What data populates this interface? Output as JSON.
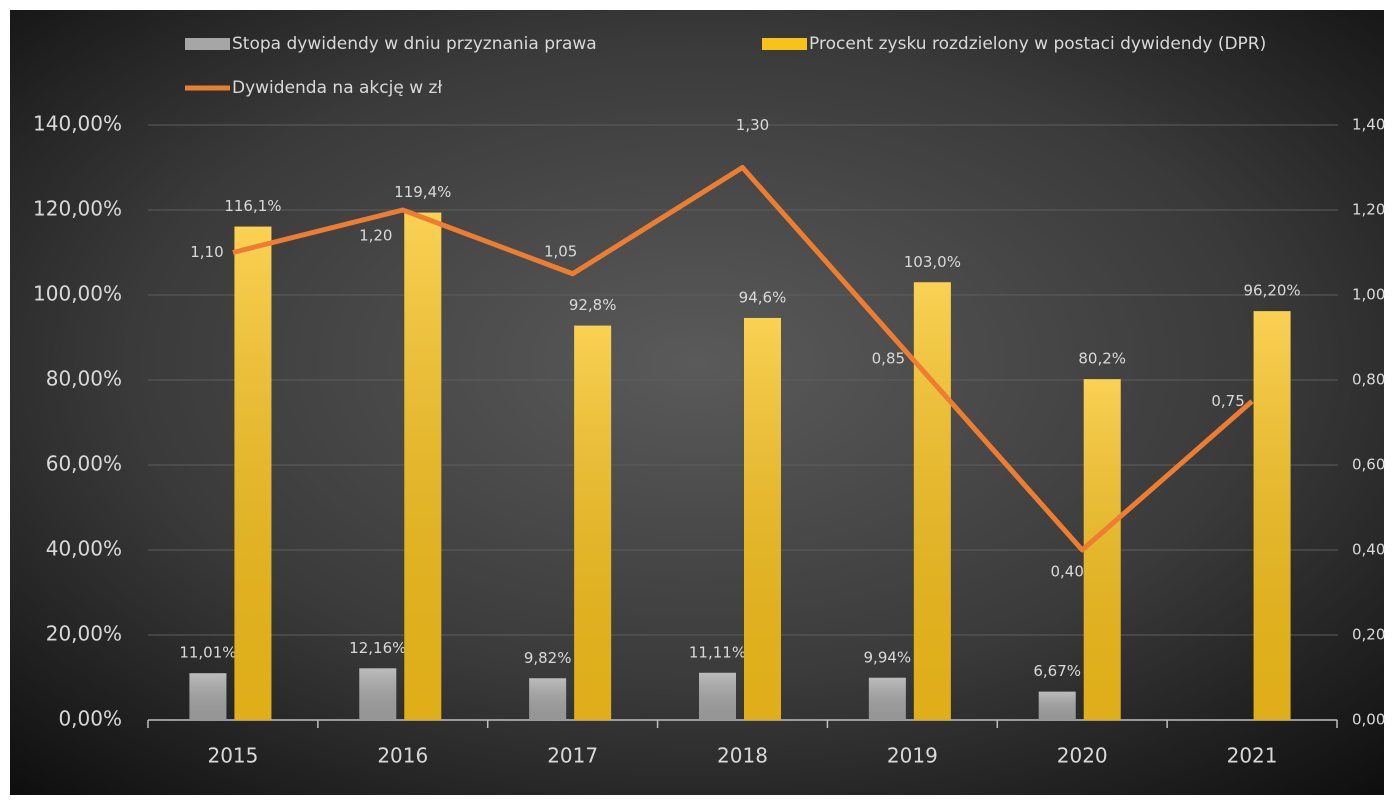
{
  "chart_data": {
    "type": "bar",
    "categories": [
      "2015",
      "2016",
      "2017",
      "2018",
      "2019",
      "2020",
      "2021"
    ],
    "series": [
      {
        "name": "Stopa dywidendy w dniu przyznania prawa",
        "color": "#a6a6a6",
        "values": [
          11.01,
          12.16,
          9.82,
          11.11,
          9.94,
          6.67,
          null
        ],
        "value_labels": [
          "11,01%",
          "12,16%",
          "9,82%",
          "11,11%",
          "9,94%",
          "6,67%",
          null
        ]
      },
      {
        "name": "Procent zysku rozdzielony w postaci dywidendy (DPR)",
        "color": "#f9c21b",
        "values": [
          116.1,
          119.4,
          92.8,
          94.6,
          103.0,
          80.2,
          96.2
        ],
        "value_labels": [
          "116,1%",
          "119,4%",
          "92,8%",
          "94,6%",
          "103,0%",
          "80,2%",
          "96,20%"
        ]
      },
      {
        "name": "Dywidenda na akcję w zł",
        "color": "#ed7d31",
        "type": "line",
        "axis": "y2",
        "values": [
          1.1,
          1.2,
          1.05,
          1.3,
          0.85,
          0.4,
          0.75
        ],
        "value_labels": [
          "1,10",
          "1,20",
          "1,05",
          "1,30",
          "0,85",
          "0,40",
          "0,75"
        ]
      }
    ],
    "ylim": [
      0,
      140
    ],
    "yticks": [
      {
        "value": 0,
        "label": "0,00%"
      },
      {
        "value": 20,
        "label": "20,00%"
      },
      {
        "value": 40,
        "label": "40,00%"
      },
      {
        "value": 60,
        "label": "60,00%"
      },
      {
        "value": 80,
        "label": "80,00%"
      },
      {
        "value": 100,
        "label": "100,00%"
      },
      {
        "value": 120,
        "label": "120,00%"
      },
      {
        "value": 140,
        "label": "140,00%"
      }
    ],
    "y2lim": [
      0,
      1.4
    ],
    "y2ticks": [
      {
        "value": 0,
        "label": "0,00"
      },
      {
        "value": 0.2,
        "label": "0,20"
      },
      {
        "value": 0.4,
        "label": "0,40"
      },
      {
        "value": 0.6,
        "label": "0,60"
      },
      {
        "value": 0.8,
        "label": "0,80"
      },
      {
        "value": 1.0,
        "label": "1,00"
      },
      {
        "value": 1.2,
        "label": "1,20"
      },
      {
        "value": 1.4,
        "label": "1,40"
      }
    ],
    "grid": true,
    "legend": "top"
  }
}
